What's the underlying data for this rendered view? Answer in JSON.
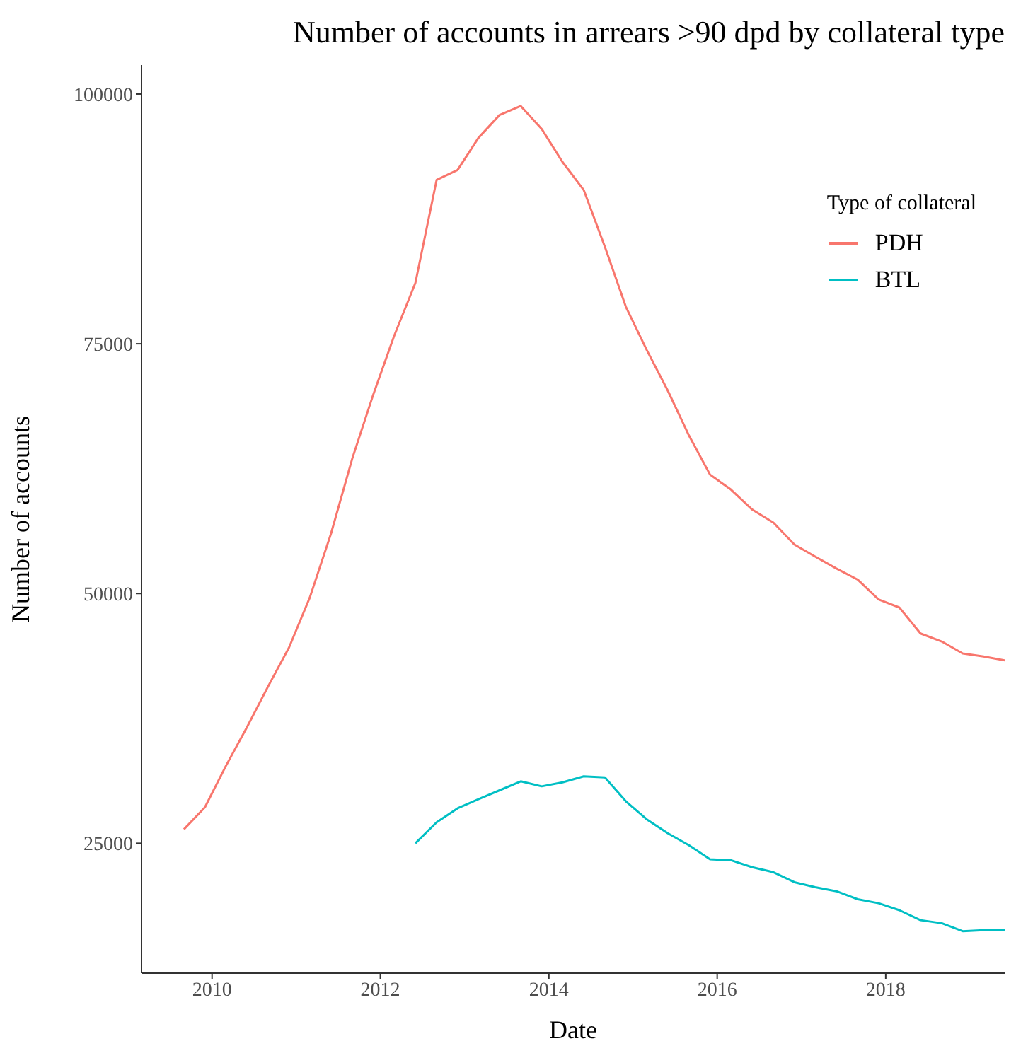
{
  "chart_data": {
    "type": "line",
    "title": "Number of accounts in arrears >90 dpd by collateral type",
    "xlabel": "Date",
    "ylabel": "Number of accounts",
    "legend_title": "Type of collateral",
    "legend": "top right",
    "grid": false,
    "marker": "none",
    "line_style": "solid",
    "x": [
      "2009-09",
      "2009-12",
      "2010-03",
      "2010-06",
      "2010-09",
      "2010-12",
      "2011-03",
      "2011-06",
      "2011-09",
      "2011-12",
      "2012-03",
      "2012-06",
      "2012-09",
      "2012-12",
      "2013-03",
      "2013-06",
      "2013-09",
      "2013-12",
      "2014-03",
      "2014-06",
      "2014-09",
      "2014-12",
      "2015-03",
      "2015-06",
      "2015-09",
      "2015-12",
      "2016-03",
      "2016-06",
      "2016-09",
      "2016-12",
      "2017-03",
      "2017-06",
      "2017-09",
      "2017-12",
      "2018-03",
      "2018-06",
      "2018-09",
      "2018-12",
      "2019-03",
      "2019-06"
    ],
    "xlim": [
      "2009-03",
      "2019-06"
    ],
    "xticks": [
      "2010",
      "2012",
      "2014",
      "2016",
      "2018"
    ],
    "ylim": [
      12000,
      102900
    ],
    "yticks": [
      25000,
      50000,
      75000,
      100000
    ],
    "series": [
      {
        "name": "PDH",
        "color": "#f8766d",
        "values": [
          26400,
          28600,
          32700,
          36600,
          40700,
          44600,
          49600,
          56000,
          63500,
          69900,
          75800,
          81100,
          91400,
          92400,
          95600,
          97900,
          98800,
          96500,
          93200,
          90400,
          84700,
          78700,
          74400,
          70300,
          65800,
          61900,
          60400,
          58400,
          57100,
          54900,
          53700,
          52500,
          51400,
          49400,
          48600,
          46000,
          45200,
          44000,
          43700,
          43300
        ]
      },
      {
        "name": "BTL",
        "color": "#00bfc4",
        "values": [
          null,
          null,
          null,
          null,
          null,
          null,
          null,
          null,
          null,
          null,
          null,
          25000,
          27100,
          28500,
          29400,
          30300,
          31200,
          30700,
          31100,
          31700,
          31600,
          29200,
          27400,
          26000,
          24800,
          23400,
          23300,
          22600,
          22100,
          21100,
          20600,
          20200,
          19400,
          19000,
          18300,
          17300,
          17000,
          16200,
          16300,
          16300
        ]
      }
    ]
  }
}
